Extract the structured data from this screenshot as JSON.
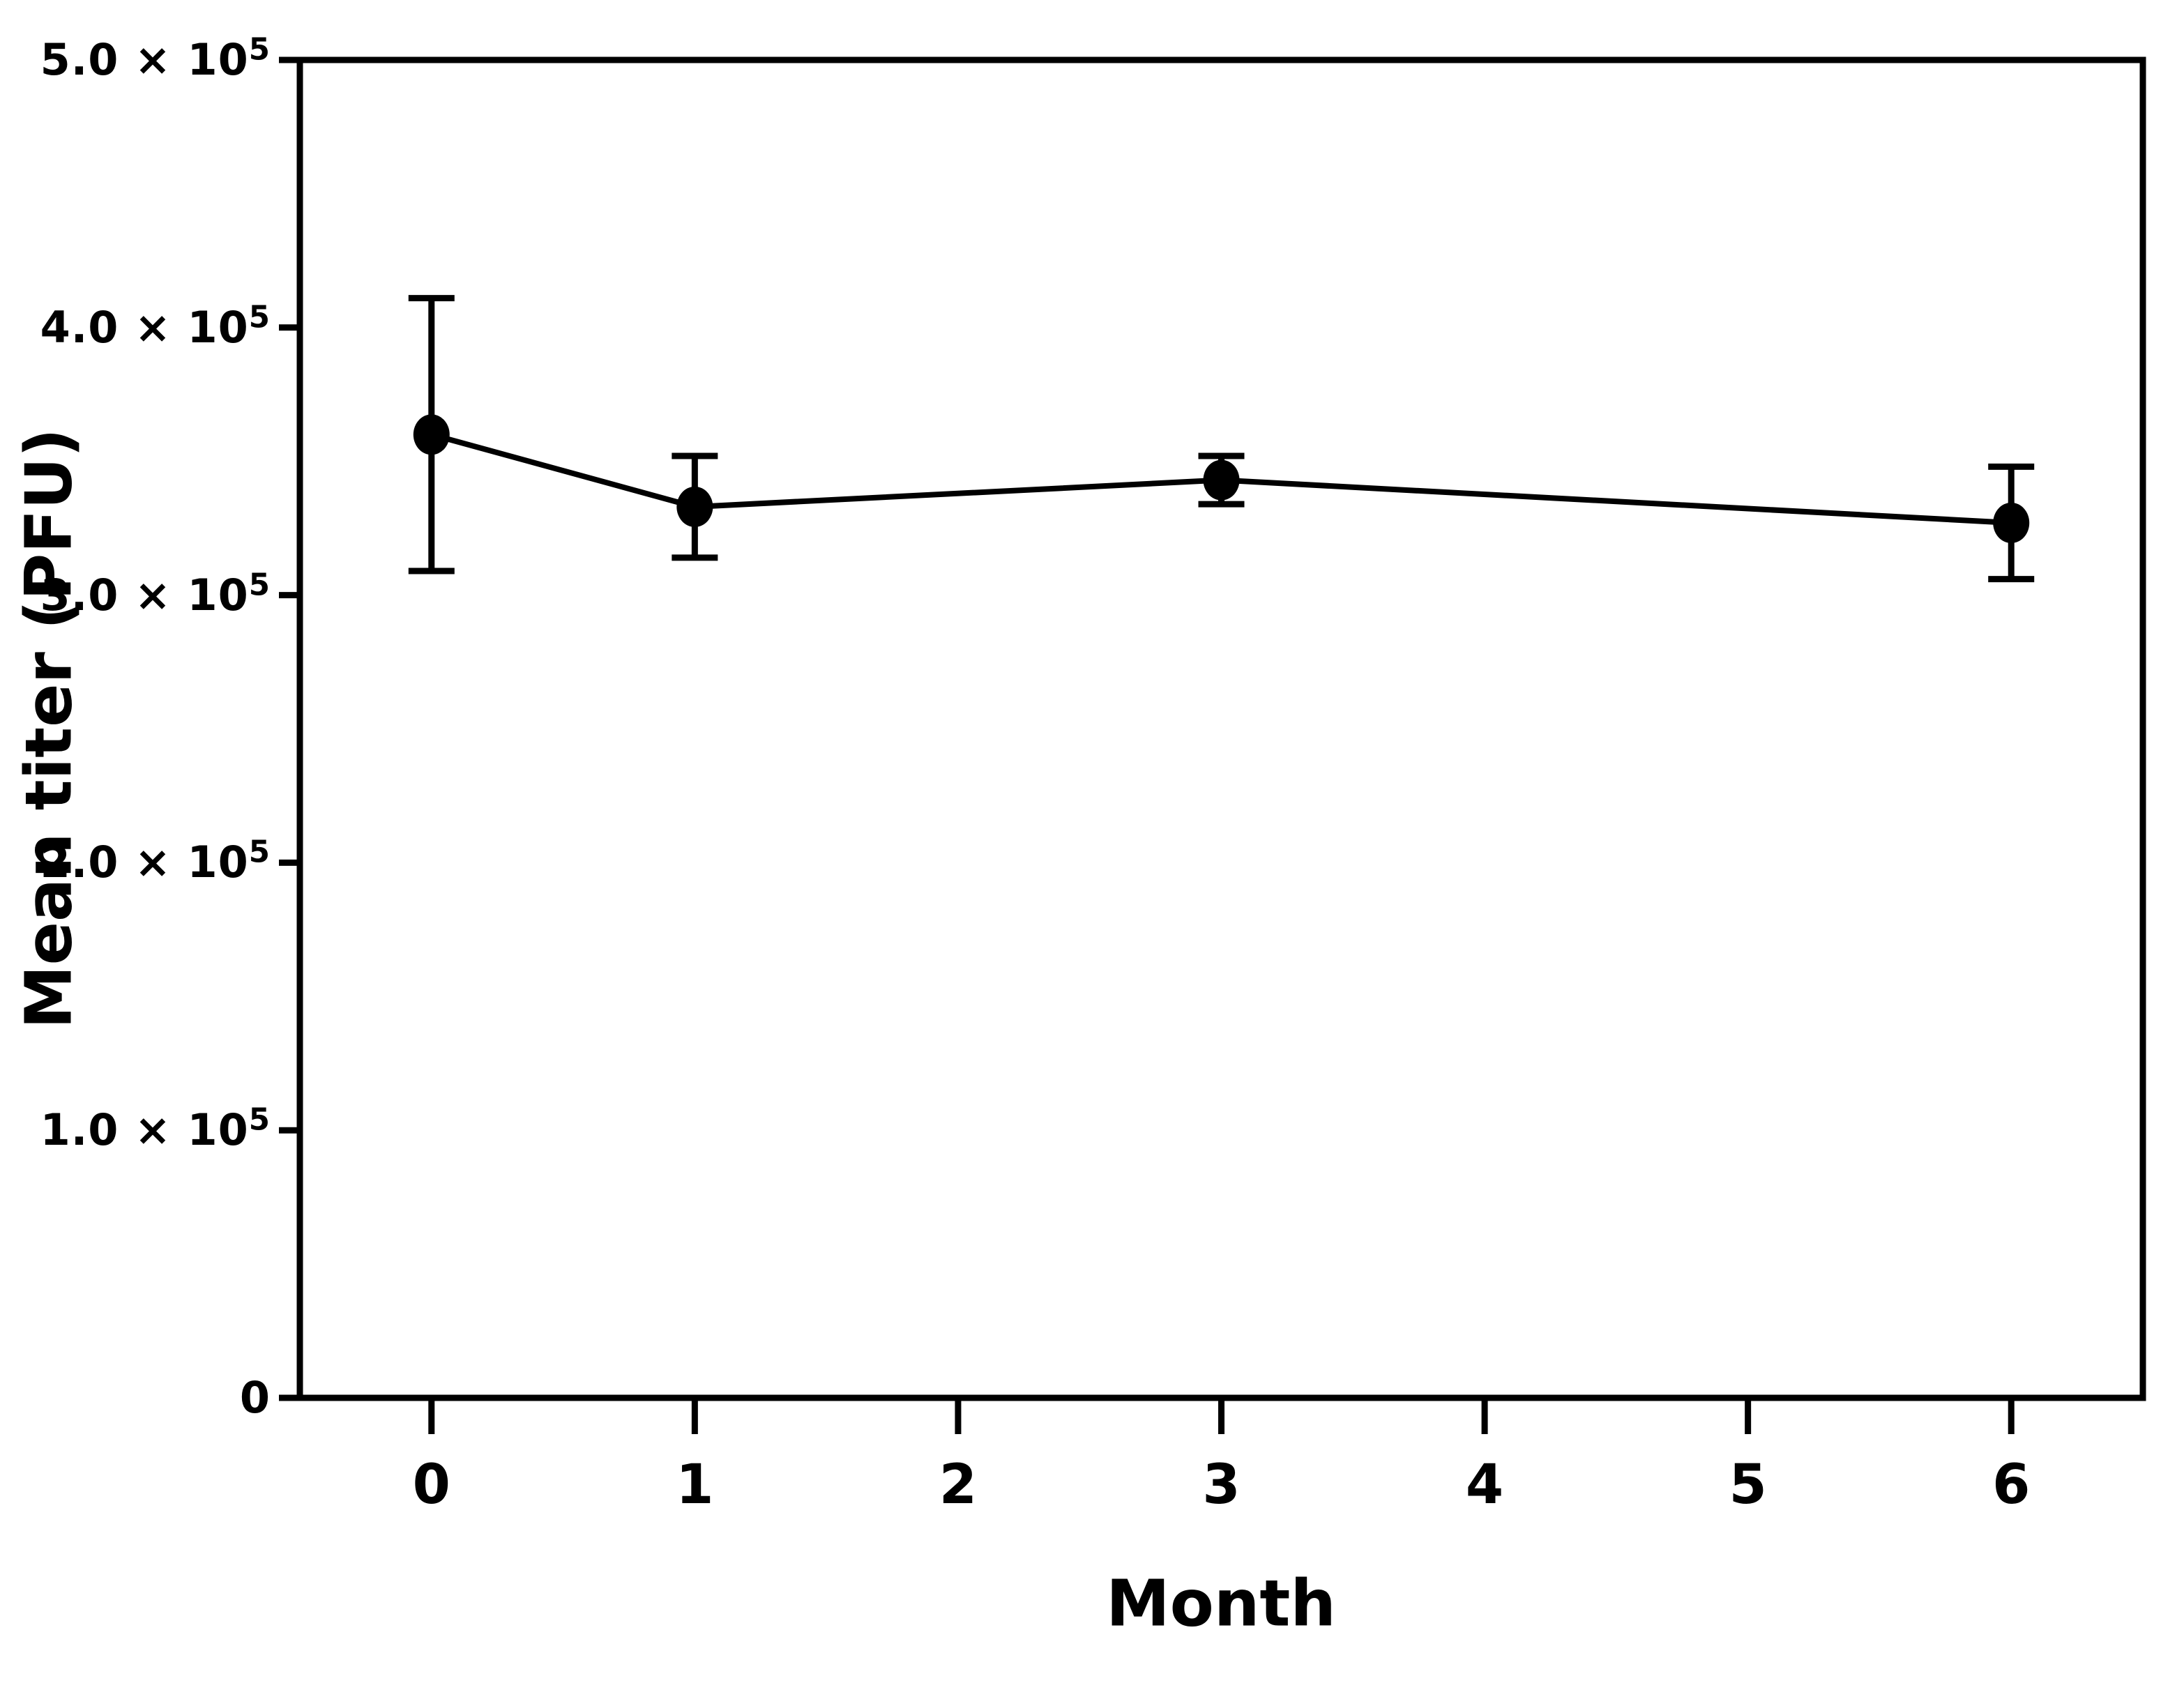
{
  "figure": {
    "background_color": "#ffffff",
    "ink_color": "#000000"
  },
  "chart_data": {
    "type": "line",
    "title": "",
    "xlabel": "Month",
    "ylabel": "Mean titer (PFU)",
    "x": [
      0,
      1,
      3,
      6
    ],
    "series": [
      {
        "name": "Mean titer",
        "values": [
          360000,
          333000,
          343000,
          327000
        ],
        "error_plus": [
          51000,
          19000,
          9000,
          21000
        ],
        "error_minus": [
          51000,
          19000,
          9000,
          21000
        ]
      }
    ],
    "marker": "filled-circle",
    "error_bars": true,
    "grid": false,
    "frame": "full-box",
    "xlim": [
      -0.5,
      6.5
    ],
    "ylim": [
      0,
      500000
    ],
    "x_ticks": [
      {
        "label": "0",
        "value": 0
      },
      {
        "label": "1",
        "value": 1
      },
      {
        "label": "2",
        "value": 2
      },
      {
        "label": "3",
        "value": 3
      },
      {
        "label": "4",
        "value": 4
      },
      {
        "label": "5",
        "value": 5
      },
      {
        "label": "6",
        "value": 6
      }
    ],
    "y_ticks": [
      {
        "mantissa": "0",
        "sup": "",
        "value": 0
      },
      {
        "mantissa": "1.0 × 10",
        "sup": "5",
        "value": 100000
      },
      {
        "mantissa": "2.0 × 10",
        "sup": "5",
        "value": 200000
      },
      {
        "mantissa": "3.0 × 10",
        "sup": "5",
        "value": 300000
      },
      {
        "mantissa": "4.0 × 10",
        "sup": "5",
        "value": 400000
      },
      {
        "mantissa": "5.0 × 10",
        "sup": "5",
        "value": 500000
      }
    ]
  }
}
